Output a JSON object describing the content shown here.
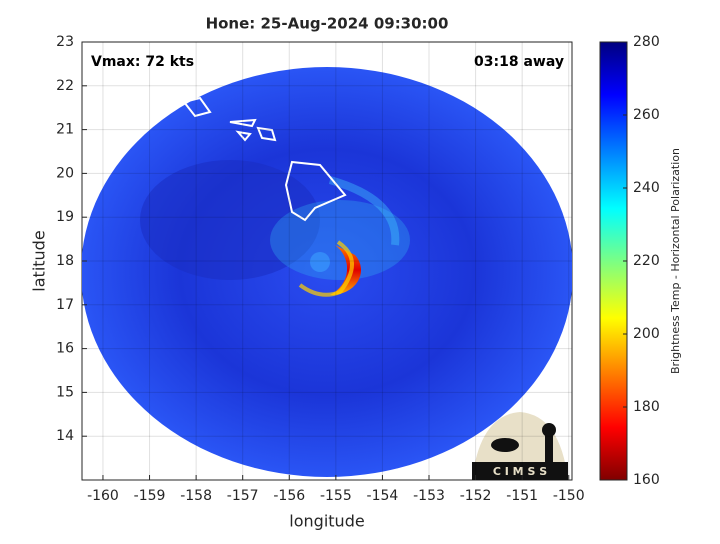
{
  "chart_data": {
    "type": "image-map",
    "title": "Hone: 25-Aug-2024 09:30:00",
    "annotations": [
      "Vmax: 72 kts",
      "03:18 away"
    ],
    "x_label": "longitude",
    "y_label": "latitude",
    "xlim": [
      -160.45,
      -149.93
    ],
    "ylim": [
      13,
      23
    ],
    "xticks": [
      -160,
      -159,
      -158,
      -157,
      -156,
      -155,
      -154,
      -153,
      -152,
      -151,
      -150
    ],
    "yticks": [
      14,
      15,
      16,
      17,
      18,
      19,
      20,
      21,
      22,
      23
    ],
    "colorbar": {
      "label": "Brightness Temp - Horizontal Polarization",
      "colormap": "jet",
      "lim": [
        160,
        280
      ],
      "ticks": [
        160,
        180,
        200,
        220,
        240,
        260,
        280
      ]
    },
    "logo_text": "C I M S S"
  }
}
